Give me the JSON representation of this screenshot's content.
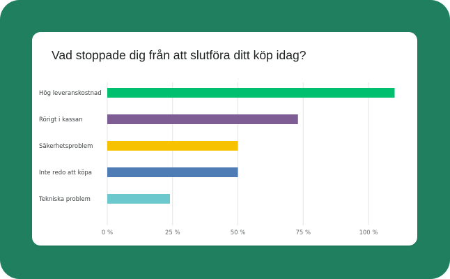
{
  "page": {
    "frame_color": "#1f7f5e",
    "card_color": "#ffffff"
  },
  "chart_data": {
    "type": "bar",
    "orientation": "horizontal",
    "title": "Vad stoppade dig från att slutföra ditt köp idag?",
    "categories": [
      "Hög leveranskostnad",
      "Rörigt i kassan",
      "Säkerhetsproblem",
      "Inte redo att köpa",
      "Tekniska problem"
    ],
    "values": [
      110,
      73,
      50,
      50,
      24
    ],
    "colors": [
      "#00bf6f",
      "#7d5d94",
      "#f7c200",
      "#507cb6",
      "#6bc8cd"
    ],
    "xlim": [
      0,
      100
    ],
    "xticks": [
      0,
      25,
      50,
      75,
      100
    ],
    "xtick_labels": [
      "0 %",
      "25 %",
      "50 %",
      "75 %",
      "100 %"
    ],
    "grid": true,
    "legend": "none"
  }
}
